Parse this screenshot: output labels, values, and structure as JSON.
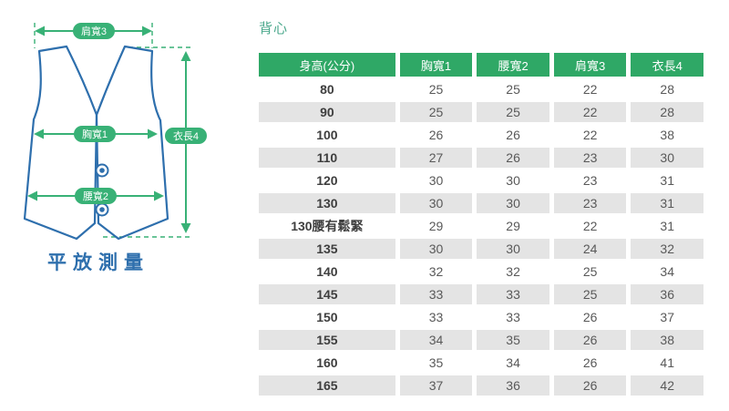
{
  "colors": {
    "header_green": "#2fa866",
    "diagram_green": "#38b176",
    "vest_blue": "#2e6fad",
    "title_green": "#4ba88c",
    "stripe_gray": "#e4e4e4"
  },
  "diagram": {
    "labels": {
      "shoulder": "肩寬3",
      "chest": "胸寬1",
      "waist": "腰寬2",
      "length": "衣長4"
    },
    "caption": "平放測量"
  },
  "section": {
    "title": "背心"
  },
  "table": {
    "columns": [
      "身高(公分)",
      "胸寬1",
      "腰寬2",
      "肩寬3",
      "衣長4"
    ],
    "rows": [
      [
        "80",
        "25",
        "25",
        "22",
        "28"
      ],
      [
        "90",
        "25",
        "25",
        "22",
        "28"
      ],
      [
        "100",
        "26",
        "26",
        "22",
        "38"
      ],
      [
        "110",
        "27",
        "26",
        "23",
        "30"
      ],
      [
        "120",
        "30",
        "30",
        "23",
        "31"
      ],
      [
        "130",
        "30",
        "30",
        "23",
        "31"
      ],
      [
        "130腰有鬆緊",
        "29",
        "29",
        "22",
        "31"
      ],
      [
        "135",
        "30",
        "30",
        "24",
        "32"
      ],
      [
        "140",
        "32",
        "32",
        "25",
        "34"
      ],
      [
        "145",
        "33",
        "33",
        "25",
        "36"
      ],
      [
        "150",
        "33",
        "33",
        "26",
        "37"
      ],
      [
        "155",
        "34",
        "35",
        "26",
        "38"
      ],
      [
        "160",
        "35",
        "34",
        "26",
        "41"
      ],
      [
        "165",
        "37",
        "36",
        "26",
        "42"
      ]
    ]
  }
}
